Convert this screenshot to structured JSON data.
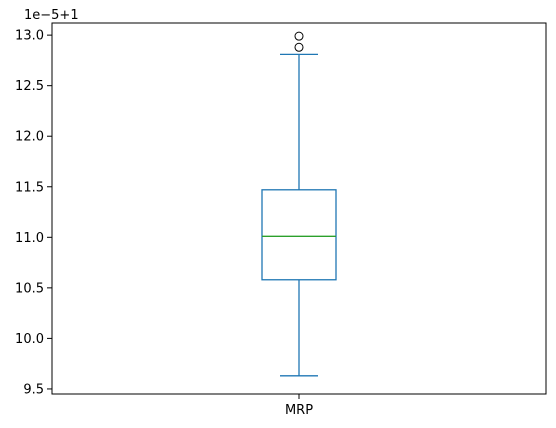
{
  "chart_data": {
    "type": "box",
    "offset_text": "1e−5+1",
    "yticks": [
      9.5,
      10.0,
      10.5,
      11.0,
      11.5,
      12.0,
      12.5,
      13.0
    ],
    "ytick_labels": [
      "9.5",
      "10.0",
      "10.5",
      "11.0",
      "11.5",
      "12.0",
      "12.5",
      "13.0"
    ],
    "ylim": [
      9.45,
      13.12
    ],
    "categories": [
      "MRP"
    ],
    "boxes": [
      {
        "category": "MRP",
        "whisker_low": 9.63,
        "q1": 10.58,
        "median": 11.01,
        "q3": 11.47,
        "whisker_high": 12.81,
        "outliers": [
          12.88,
          12.99
        ]
      }
    ],
    "colors": {
      "box": "#1f77b4",
      "median": "#2ca02c",
      "outlier": "#000000"
    },
    "grid": false
  }
}
